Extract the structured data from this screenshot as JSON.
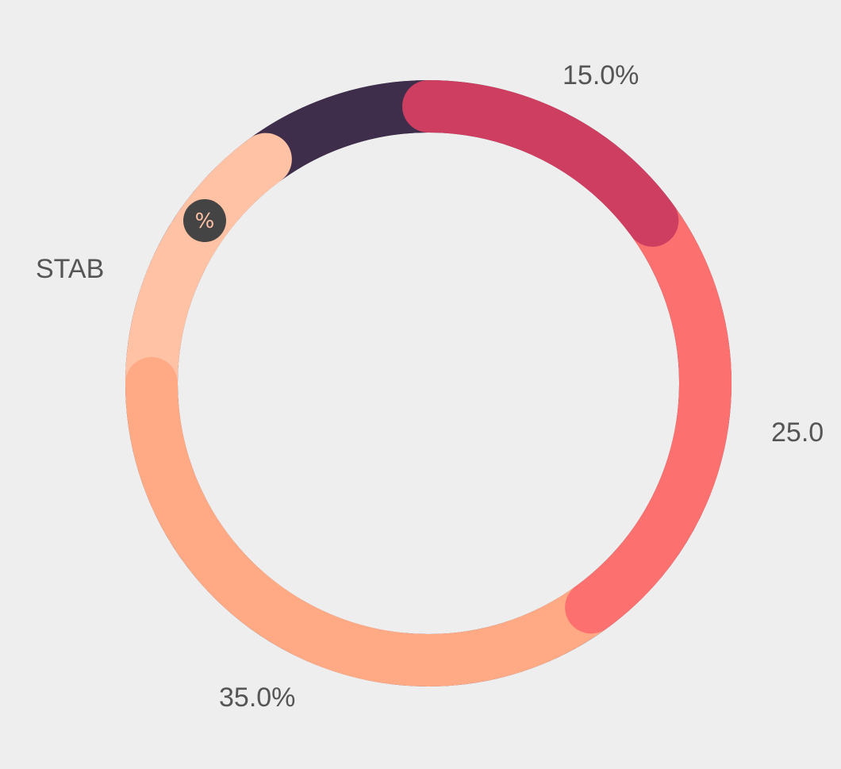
{
  "chart_data": {
    "type": "pie",
    "variant": "donut",
    "slices": [
      {
        "label": "15.0%",
        "value": 15,
        "color": "#CE3E60"
      },
      {
        "label": "25.0",
        "value": 25,
        "color": "#FD7070"
      },
      {
        "label": "35.0%",
        "value": 35,
        "color": "#FFAA85"
      },
      {
        "label": "STAB",
        "value": 15,
        "color": "#FFC2A5"
      },
      {
        "label": "",
        "value": 10,
        "color": "#3F2E4B"
      }
    ],
    "badge": {
      "symbol": "%",
      "color": "#444444",
      "symbol_color": "#FFC2A5",
      "ring_color": "#FFC2A5"
    },
    "background": "#EEEEEE",
    "label_color": "#555555"
  }
}
